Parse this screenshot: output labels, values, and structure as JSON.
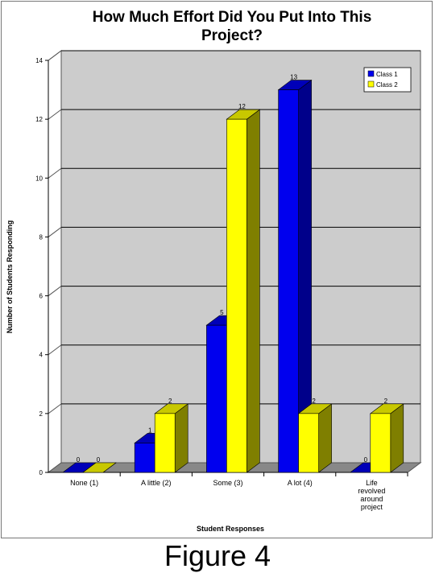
{
  "figure_caption": "Figure 4",
  "colors": {
    "class1_front": "#0000ee",
    "class1_side": "#00008a",
    "class1_top": "#0000b8",
    "class2_front": "#ffff00",
    "class2_side": "#7f7f00",
    "class2_top": "#c8c800",
    "plot_back": "#cccccc",
    "floor": "#888888"
  },
  "chart_data": {
    "type": "bar",
    "title": "How Much Effort Did You Put Into This Project?",
    "xlabel": "Student Responses",
    "ylabel": "Number of Students Responding",
    "categories": [
      "None (1)",
      "A little (2)",
      "Some (3)",
      "A lot (4)",
      "Life revolved around project"
    ],
    "series": [
      {
        "name": "Class 1",
        "values": [
          0,
          1,
          5,
          13,
          0
        ]
      },
      {
        "name": "Class 2",
        "values": [
          0,
          2,
          12,
          2,
          2
        ]
      }
    ],
    "ylim": [
      0,
      14
    ],
    "yticks": [
      0,
      2,
      4,
      6,
      8,
      10,
      12,
      14
    ],
    "grid": true,
    "legend": "top-right",
    "style": "3d"
  }
}
